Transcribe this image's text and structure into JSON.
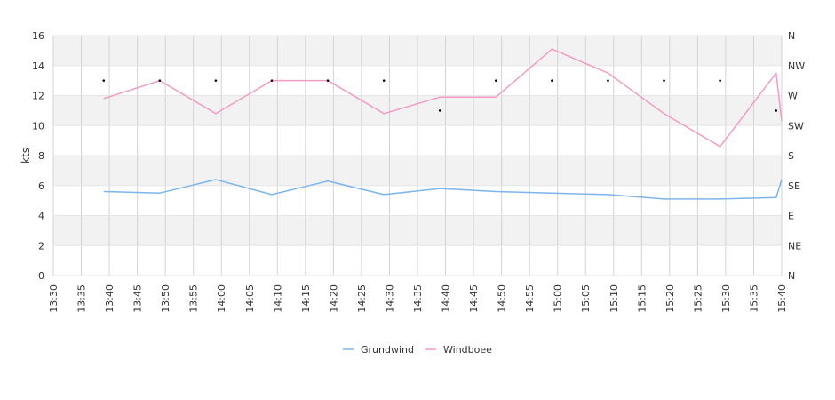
{
  "chart_data": {
    "type": "line",
    "ylabel": "kts",
    "ylim": [
      0,
      16
    ],
    "y_ticks": [
      "0",
      "2",
      "4",
      "6",
      "8",
      "10",
      "12",
      "14",
      "16"
    ],
    "y2_ticks": [
      "N",
      "NE",
      "E",
      "SE",
      "S",
      "SW",
      "W",
      "NW",
      "N"
    ],
    "x_ticks": [
      "13:30",
      "13:35",
      "13:40",
      "13:45",
      "13:50",
      "13:55",
      "14:00",
      "14:05",
      "14:10",
      "14:15",
      "14:20",
      "14:25",
      "14:30",
      "14:35",
      "14:40",
      "14:45",
      "14:50",
      "14:55",
      "15:00",
      "15:05",
      "15:10",
      "15:15",
      "15:20",
      "15:25",
      "15:30",
      "15:35",
      "15:40"
    ],
    "grid": true,
    "legend_position": "bottom",
    "colors": {
      "grundwind": "#7cb5ec",
      "windboee": "#f39bc6",
      "direction": "#000000"
    },
    "series": [
      {
        "name": "Grundwind",
        "x": [
          "13:39",
          "13:49",
          "13:59",
          "14:09",
          "14:19",
          "14:29",
          "14:39",
          "14:49",
          "14:59",
          "15:09",
          "15:19",
          "15:29",
          "15:39",
          "15:40"
        ],
        "values": [
          5.6,
          5.5,
          6.4,
          5.4,
          6.3,
          5.4,
          5.8,
          5.6,
          5.5,
          5.4,
          5.1,
          5.1,
          5.2,
          6.4
        ]
      },
      {
        "name": "Windboee",
        "x": [
          "13:39",
          "13:49",
          "13:59",
          "14:09",
          "14:19",
          "14:29",
          "14:39",
          "14:49",
          "14:59",
          "15:09",
          "15:19",
          "15:29",
          "15:39",
          "15:40"
        ],
        "values": [
          11.8,
          13.0,
          10.8,
          13.0,
          13.0,
          10.8,
          11.9,
          11.9,
          15.1,
          13.5,
          10.8,
          8.6,
          13.5,
          10.3
        ]
      }
    ],
    "direction": {
      "x": [
        "13:39",
        "13:49",
        "13:59",
        "14:09",
        "14:19",
        "14:29",
        "14:39",
        "14:49",
        "14:59",
        "15:09",
        "15:19",
        "15:29",
        "15:39"
      ],
      "values": [
        "W",
        "W",
        "W",
        "W",
        "W",
        "W",
        "SW",
        "W",
        "W",
        "W",
        "W",
        "W",
        "SW"
      ]
    }
  }
}
